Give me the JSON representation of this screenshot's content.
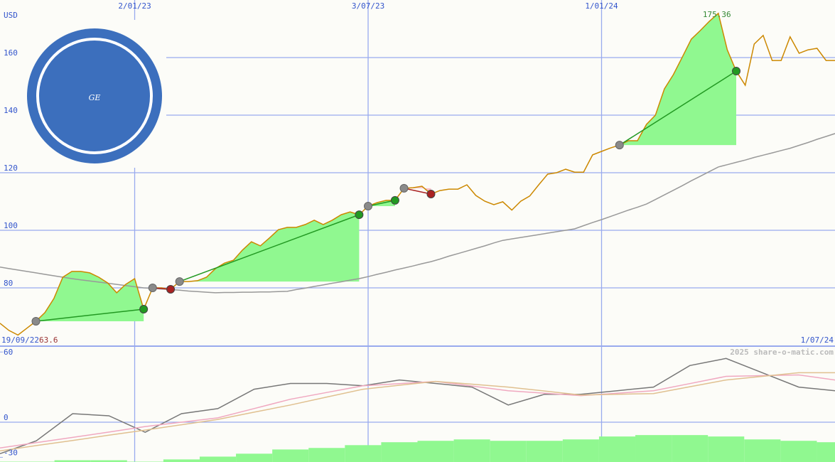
{
  "logo": "GE",
  "chart_data": [
    {
      "type": "line",
      "y_label": "USD",
      "watermark": "2025 share-o-matic.com",
      "categories": [
        "19/09/22",
        null,
        null,
        null,
        null,
        null,
        null,
        null,
        null,
        null,
        null,
        null,
        null,
        null,
        null,
        "2/01/23",
        null,
        null,
        null,
        null,
        null,
        null,
        null,
        null,
        null,
        null,
        null,
        null,
        null,
        null,
        null,
        null,
        null,
        null,
        null,
        null,
        null,
        null,
        null,
        null,
        null,
        "3/07/23",
        null,
        null,
        null,
        null,
        null,
        null,
        null,
        null,
        null,
        null,
        null,
        null,
        null,
        null,
        null,
        null,
        null,
        null,
        null,
        null,
        null,
        null,
        null,
        null,
        null,
        "1/01/24",
        null,
        null,
        null,
        null,
        null,
        null,
        null,
        null,
        null,
        null,
        null,
        null,
        null,
        null,
        null,
        null,
        null,
        null,
        null,
        null,
        null,
        null,
        null,
        null,
        null,
        "1/07/24"
      ],
      "series": [
        {
          "color": "#cc8800",
          "values": [
            67.7,
            65.2,
            63.6,
            66,
            68.4,
            71.4,
            76.3,
            83.7,
            85.7,
            85.7,
            85.2,
            83.7,
            81.7,
            78.3,
            81.2,
            83.2,
            72.6,
            80,
            80,
            79.5,
            82.2,
            82.2,
            82.5,
            83.7,
            86.7,
            88.6,
            89.6,
            93.1,
            96,
            94.6,
            97.3,
            100.2,
            101,
            101,
            102,
            103.5,
            102,
            103.5,
            105.4,
            106.4,
            105.4,
            108.4,
            109.6,
            110.4,
            110.4,
            114.6,
            114.8,
            115.3,
            112.6,
            113.8,
            114.3,
            114.3,
            115.8,
            112.1,
            110.1,
            108.9,
            109.9,
            107,
            110.1,
            111.9,
            115.8,
            119.5,
            120,
            121.2,
            120.2,
            120.2,
            126.2,
            127.4,
            128.6,
            129.6,
            131.1,
            131.1,
            136.8,
            140,
            149.1,
            154.1,
            160.2,
            166.4,
            169.4,
            172.6,
            175.36,
            162.7,
            155.3,
            150.4,
            164.7,
            167.7,
            159,
            159,
            167.2,
            161.5,
            162.7,
            163.2,
            159,
            159
          ]
        },
        {
          "color": "#999999",
          "values": [
            87.2,
            86.7,
            86.2,
            85.7,
            85.2,
            84.7,
            84.2,
            83.7,
            83.2,
            82.8,
            82.4,
            82.0,
            81.6,
            81.2,
            80.8,
            80.4,
            80.0,
            79.8,
            79.6,
            79.4,
            79.2,
            78.9,
            78.7,
            78.5,
            78.3,
            78.4,
            78.4,
            78.5,
            78.5,
            78.6,
            78.6,
            78.7,
            78.8,
            79.4,
            79.9,
            80.5,
            81.0,
            81.6,
            82.1,
            82.7,
            83.2,
            83.9,
            84.7,
            85.4,
            86.2,
            86.9,
            87.6,
            88.4,
            89.1,
            90.0,
            91.0,
            91.9,
            92.8,
            93.7,
            94.6,
            95.6,
            96.5,
            97,
            97.5,
            98,
            98.5,
            99,
            99.5,
            100,
            100.5,
            101.6,
            102.7,
            103.7,
            104.8,
            105.9,
            107,
            108,
            109.1,
            110.7,
            112.3,
            113.9,
            115.5,
            117.2,
            118.8,
            120.4,
            122,
            122.8,
            123.6,
            124.4,
            125.3,
            126.1,
            126.9,
            127.7,
            128.5,
            129.5,
            130.5,
            131.6,
            132.6,
            133.6
          ]
        }
      ],
      "min_index": 2,
      "max_index": 80,
      "min_color": "#993333",
      "max_color": "#338833",
      "trades": [
        {
          "start": 4,
          "end": 16
        },
        {
          "start": 17,
          "end": 19
        },
        {
          "start": 20,
          "end": 40
        },
        {
          "start": 41,
          "end": 44
        },
        {
          "start": 45,
          "end": 48
        },
        {
          "start": 69,
          "end": 82
        }
      ],
      "win_color": "#229922",
      "loss_color": "#aa2222",
      "win_fill": "#90f890",
      "loss_fill": "#f8c0c8",
      "ylim": [
        60,
        180
      ],
      "yticks": [
        80,
        100,
        120,
        140,
        160
      ],
      "grid": true
    },
    {
      "type": "line",
      "categories": [
        null,
        null,
        null,
        null,
        null,
        null,
        null,
        null,
        null,
        null,
        null,
        null,
        null,
        null,
        null,
        null,
        null,
        null,
        null,
        null,
        null,
        null,
        null,
        null
      ],
      "series": [
        {
          "type": "bar",
          "color": "#90f890",
          "values": [
            -33.7,
            -33.7,
            -32.5,
            -32.5,
            -33.7,
            -31.8,
            -29.4,
            -26.9,
            -23.3,
            -22,
            -19.6,
            -17.1,
            -15.9,
            -14.7,
            -15.9,
            -15.9,
            -14.7,
            -12.2,
            -11,
            -11,
            -12.2,
            -14.7,
            -15.9,
            -17.1
          ]
        },
        {
          "color": "#777777",
          "values": [
            -26.9,
            -15.9,
            7.3,
            5.5,
            -8.6,
            7.3,
            11.6,
            28.2,
            33.1,
            33.1,
            31.2,
            36.1,
            33.1,
            30,
            14.7,
            23.9,
            23.9,
            26.9,
            30,
            48.4,
            54.5,
            42.3,
            30,
            26.9
          ]
        },
        {
          "color": "#f0a8c0",
          "values": [
            -22,
            -17.5,
            -13,
            -8.4,
            -3.7,
            0,
            3.7,
            11.7,
            19.6,
            25.4,
            31.2,
            33,
            34.9,
            30.9,
            26.9,
            24.8,
            22.7,
            24.8,
            26.9,
            33,
            39.2,
            39.8,
            40.4,
            36.1
          ]
        },
        {
          "color": "#e0c090",
          "values": [
            -24.5,
            -20,
            -15.6,
            -11.1,
            -6.7,
            -2.2,
            2.4,
            8.6,
            14.7,
            21.5,
            28.2,
            31.6,
            34.9,
            32.5,
            30,
            26.7,
            23.3,
            23.9,
            24.5,
            30.3,
            36.1,
            39.2,
            42.3,
            42.3
          ]
        }
      ],
      "ylim": [
        -34,
        65
      ],
      "yticks": [
        60,
        0,
        -30
      ]
    }
  ]
}
